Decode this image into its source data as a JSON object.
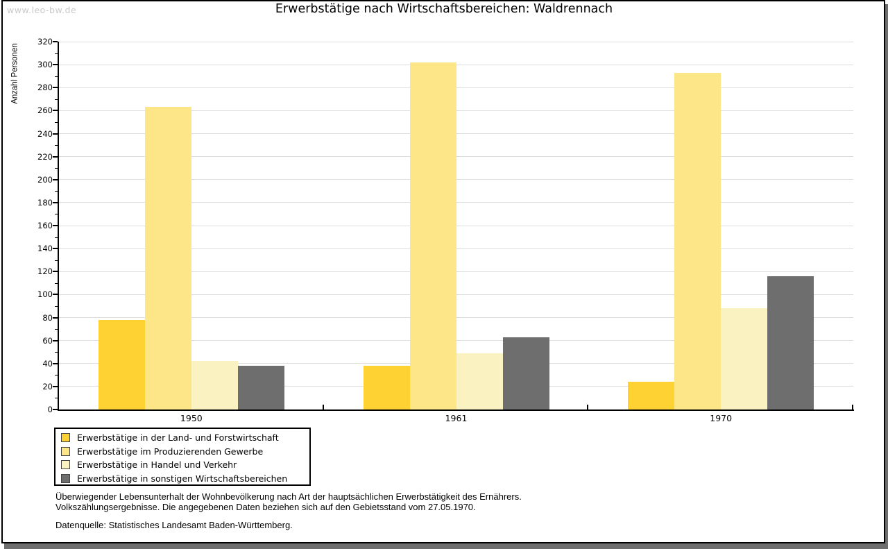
{
  "watermark": "www.leo-bw.de",
  "title": "Erwerbstätige nach Wirtschaftsbereichen: Waldrennach",
  "chart_data": {
    "type": "bar",
    "title": "Erwerbstätige nach Wirtschaftsbereichen: Waldrennach",
    "xlabel": "",
    "ylabel": "Anzahl Personen",
    "ylim": [
      0,
      320
    ],
    "ytick_step": 20,
    "minor_tick_step": 10,
    "grid": true,
    "legend_position": "bottom-left",
    "categories": [
      "1950",
      "1961",
      "1970"
    ],
    "series": [
      {
        "name": "Erwerbstätige in der Land- und Forstwirtschaft",
        "color": "#FDD232",
        "values": [
          78,
          38,
          24
        ]
      },
      {
        "name": "Erwerbstätige im Produzierenden Gewerbe",
        "color": "#FCE687",
        "values": [
          263,
          302,
          293
        ]
      },
      {
        "name": "Erwerbstätige in Handel und Verkehr",
        "color": "#FBF2C1",
        "values": [
          42,
          49,
          88
        ]
      },
      {
        "name": "Erwerbstätige in sonstigen Wirtschaftsbereichen",
        "color": "#6E6E6E",
        "values": [
          38,
          63,
          116
        ]
      }
    ]
  },
  "footnote": {
    "line1": "Überwiegender Lebensunterhalt der Wohnbevölkerung nach Art der hauptsächlichen Erwerbstätigkeit des Ernährers.",
    "line2": "Volkszählungsergebnisse. Die angegebenen Daten beziehen sich auf den Gebietsstand vom 27.05.1970."
  },
  "source": "Datenquelle: Statistisches Landesamt Baden-Württemberg.",
  "colors": {
    "grid": "#DDDDDD",
    "axis": "#000000",
    "watermark": "#C9C9C9",
    "frame_shadow": "#6E6E6E",
    "swatch_border": "#444444"
  }
}
